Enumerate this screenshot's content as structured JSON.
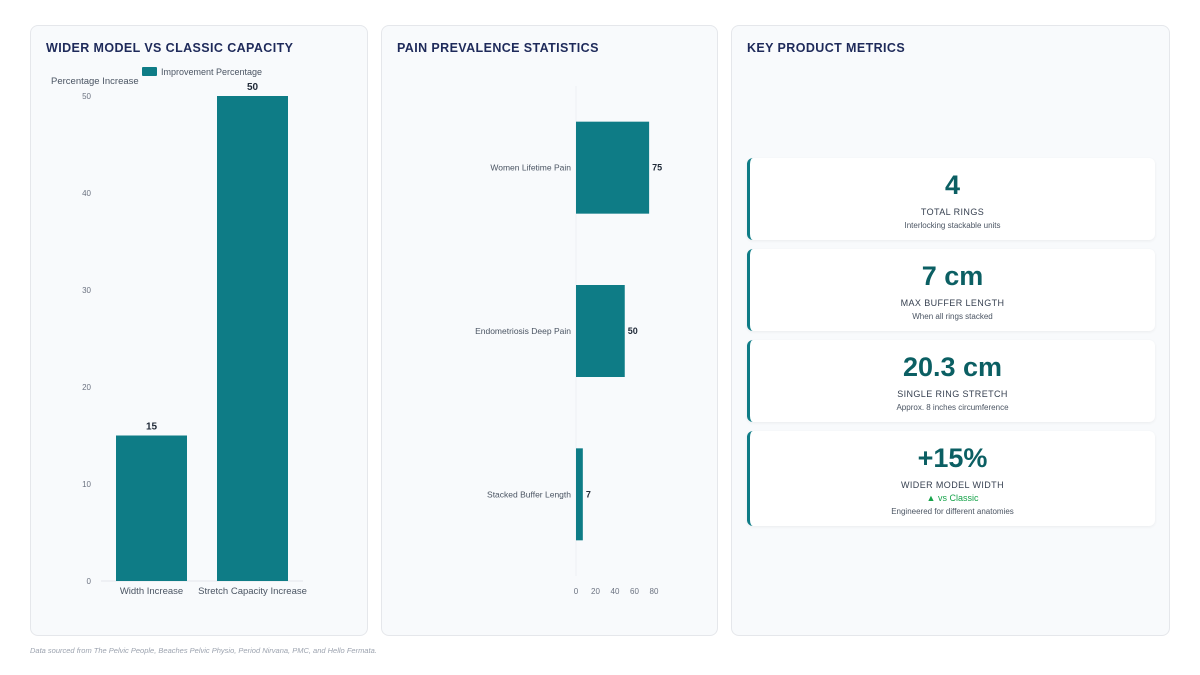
{
  "colors": {
    "accent": "#0e7c86",
    "value_text": "#0b5f63",
    "title": "#1e2a5a",
    "delta": "#16a34a"
  },
  "panels": {
    "capacity": {
      "title": "WIDER MODEL VS CLASSIC CAPACITY"
    },
    "pain": {
      "title": "PAIN PREVALENCE STATISTICS"
    },
    "metrics": {
      "title": "KEY PRODUCT METRICS"
    }
  },
  "chart_data": [
    {
      "type": "bar",
      "orientation": "vertical",
      "categories": [
        "Width Increase",
        "Stretch Capacity Increase"
      ],
      "series": [
        {
          "name": "Improvement Percentage",
          "values": [
            15,
            50
          ]
        }
      ],
      "ylabel": "Percentage Increase",
      "ylim": [
        0,
        50
      ],
      "yticks": [
        0,
        10,
        20,
        30,
        40,
        50
      ],
      "legend": "top",
      "data_labels": true,
      "grid": false
    },
    {
      "type": "bar",
      "orientation": "horizontal",
      "categories": [
        "Women Lifetime Pain",
        "Endometriosis Deep Pain",
        "Stacked Buffer Length"
      ],
      "values": [
        75,
        50,
        7
      ],
      "xlim": [
        0,
        80
      ],
      "xticks": [
        0,
        20,
        40,
        60,
        80
      ],
      "data_labels": true,
      "grid": false
    }
  ],
  "metrics": [
    {
      "value": "4",
      "label": "TOTAL RINGS",
      "desc": "Interlocking stackable units"
    },
    {
      "value": "7 cm",
      "label": "MAX BUFFER LENGTH",
      "desc": "When all rings stacked"
    },
    {
      "value": "20.3 cm",
      "label": "SINGLE RING STRETCH",
      "desc": "Approx. 8 inches circumference"
    },
    {
      "value": "+15%",
      "label": "WIDER MODEL WIDTH",
      "delta": "▲ vs Classic",
      "desc": "Engineered for different anatomies"
    }
  ],
  "footer": {
    "source": "Data sourced from The Pelvic People, Beaches Pelvic Physio, Period Nirvana, PMC, and Hello Fermata."
  }
}
